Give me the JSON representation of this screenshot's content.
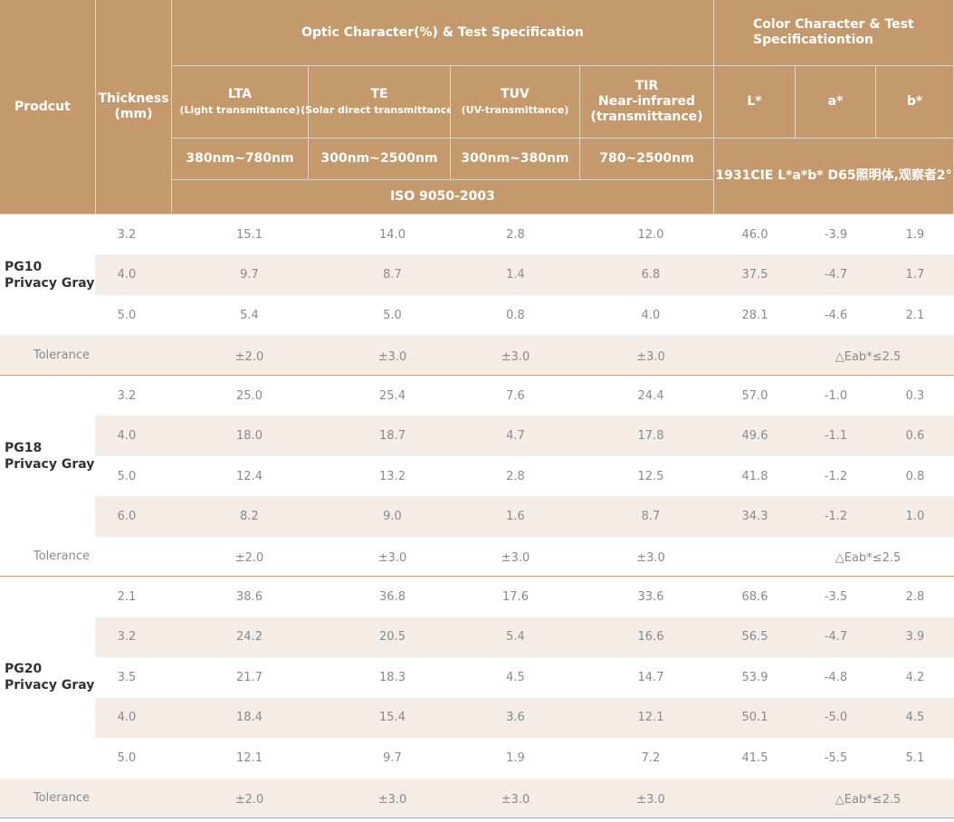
{
  "header": {
    "product": "Prodcut",
    "thickness": [
      "Thickness",
      "(mm)"
    ],
    "optic_title": "Optic Character(%) & Test Specification",
    "color_title": [
      "Color Character & Test",
      "Specificationtion"
    ],
    "columns": [
      {
        "name": "LTA",
        "sub": "(Light transmittance)"
      },
      {
        "name": "TE",
        "sub": "(Solar direct transmittance)"
      },
      {
        "name": "TUV",
        "sub": "(UV-transmittance)"
      },
      {
        "name": "TIR",
        "sub": "Near-infrared\n(transmittance)"
      }
    ],
    "wavelengths": [
      "380nm~780nm",
      "300nm~2500nm",
      "300nm~380nm",
      "780~2500nm"
    ],
    "iso": "ISO 9050-2003",
    "lab": [
      "L*",
      "a*",
      "b*"
    ],
    "cie": "1931CIE L*a*b*  D65照明体,观察者2°"
  },
  "groups": [
    {
      "name": "PG10",
      "subname": "Privacy Gray",
      "rows": [
        [
          "3.2",
          "15.1",
          "14.0",
          "2.8",
          "12.0",
          "46.0",
          "-3.9",
          "1.9"
        ],
        [
          "4.0",
          "9.7",
          "8.7",
          "1.4",
          "6.8",
          "37.5",
          "-4.7",
          "1.7"
        ],
        [
          "5.0",
          "5.4",
          "5.0",
          "0.8",
          "4.0",
          "28.1",
          "-4.6",
          "2.1"
        ]
      ],
      "tolerance": {
        "label": "Tolerance",
        "values": [
          "±2.0",
          "±3.0",
          "±3.0",
          "±3.0"
        ],
        "color": "△Eab*≤2.5"
      }
    },
    {
      "name": "PG18",
      "subname": "Privacy Gray",
      "rows": [
        [
          "3.2",
          "25.0",
          "25.4",
          "7.6",
          "24.4",
          "57.0",
          "-1.0",
          "0.3"
        ],
        [
          "4.0",
          "18.0",
          "18.7",
          "4.7",
          "17.8",
          "49.6",
          "-1.1",
          "0.6"
        ],
        [
          "5.0",
          "12.4",
          "13.2",
          "2.8",
          "12.5",
          "41.8",
          "-1.2",
          "0.8"
        ],
        [
          "6.0",
          "8.2",
          "9.0",
          "1.6",
          "8.7",
          "34.3",
          "-1.2",
          "1.0"
        ]
      ],
      "tolerance": {
        "label": "Tolerance",
        "values": [
          "±2.0",
          "±3.0",
          "±3.0",
          "±3.0"
        ],
        "color": "△Eab*≤2.5"
      }
    },
    {
      "name": "PG20",
      "subname": "Privacy Gray",
      "rows": [
        [
          "2.1",
          "38.6",
          "36.8",
          "17.6",
          "33.6",
          "68.6",
          "-3.5",
          "2.8"
        ],
        [
          "3.2",
          "24.2",
          "20.5",
          "5.4",
          "16.6",
          "56.5",
          "-4.7",
          "3.9"
        ],
        [
          "3.5",
          "21.7",
          "18.3",
          "4.5",
          "14.7",
          "53.9",
          "-4.8",
          "4.2"
        ],
        [
          "4.0",
          "18.4",
          "15.4",
          "3.6",
          "12.1",
          "50.1",
          "-5.0",
          "4.5"
        ],
        [
          "5.0",
          "12.1",
          "9.7",
          "1.9",
          "7.2",
          "41.5",
          "-5.5",
          "5.1"
        ]
      ],
      "tolerance": {
        "label": "Tolerance",
        "values": [
          "±2.0",
          "±3.0",
          "±3.0",
          "±3.0"
        ],
        "color": "△Eab*≤2.5"
      }
    }
  ]
}
